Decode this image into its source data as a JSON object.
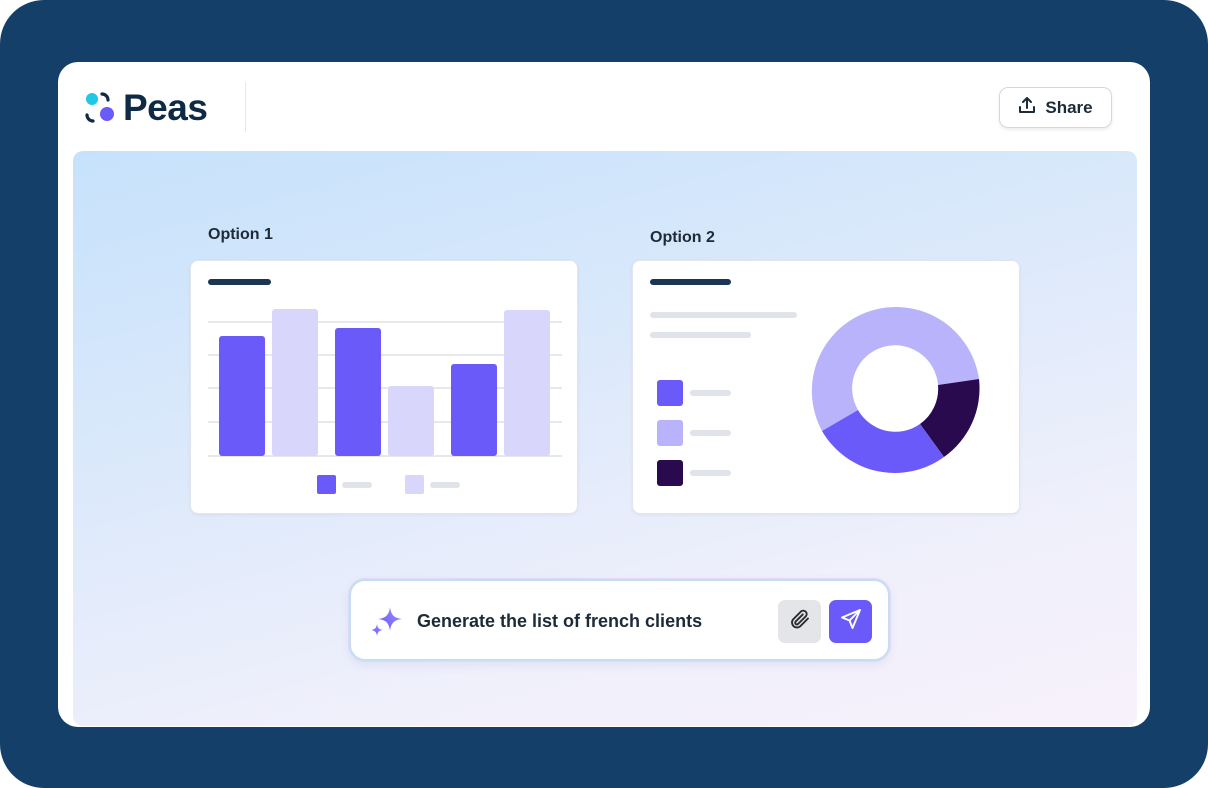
{
  "app": {
    "logo_text": "Peas",
    "share_label": "Share"
  },
  "colors": {
    "frame": "#133f68",
    "accent": "#6a5af9",
    "light_accent": "#d9d6fb",
    "mid_accent": "#b9b3fb",
    "dark_accent": "#2a0a4f",
    "title_text": "#0f2a44"
  },
  "options": [
    {
      "label": "Option 1"
    },
    {
      "label": "Option 2"
    }
  ],
  "prompt": {
    "text": "Generate the list of french clients"
  },
  "icons": {
    "share": "upload-icon",
    "sparkle": "sparkle-icon",
    "attach": "paperclip-icon",
    "send": "send-icon"
  }
}
